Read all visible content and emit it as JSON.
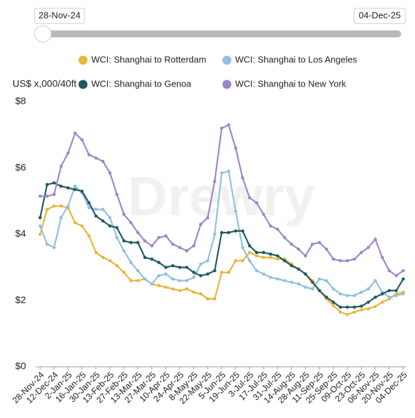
{
  "range_slider": {
    "start_label": "28-Nov-24",
    "end_label": "04-Dec-25"
  },
  "chart_data": {
    "type": "line",
    "y_axis_label": "US$ x,000/40ft",
    "watermark": "Drewry",
    "categories": [
      "28-Nov-24",
      null,
      "12-Dec-24",
      null,
      "2-Jan-25",
      null,
      "16-Jan-25",
      null,
      "30-Jan-25",
      null,
      "13-Feb-25",
      null,
      "27-Feb-25",
      null,
      "13-Mar-25",
      null,
      "27-Mar-25",
      null,
      "10-Apr-25",
      null,
      "24-Apr-25",
      null,
      "8-May-25",
      null,
      "22-May-25",
      null,
      "5-Jun-25",
      null,
      "19-Jun-25",
      null,
      "3-Jul-25",
      null,
      "17-Jul-25",
      null,
      "31-Jul-25",
      null,
      "14-Aug-25",
      null,
      "28-Aug-25",
      null,
      "11-Sep-25",
      null,
      "25-Sep-25",
      null,
      "09-Oct-25",
      null,
      "23-Oct-25",
      null,
      "06-Nov-25",
      null,
      "20-Nov-25",
      null,
      "04-Dec-25"
    ],
    "series": [
      {
        "name": "WCI: Shanghai to Rotterdam",
        "color": "#e9b43c",
        "values": [
          4.0,
          4.75,
          4.85,
          4.85,
          4.8,
          4.35,
          4.25,
          3.95,
          3.45,
          3.3,
          3.2,
          3.05,
          2.85,
          2.6,
          2.6,
          2.65,
          2.5,
          2.45,
          2.4,
          2.35,
          2.3,
          2.35,
          2.25,
          2.2,
          2.05,
          2.05,
          2.85,
          2.85,
          3.2,
          3.2,
          3.45,
          3.35,
          3.3,
          3.3,
          3.25,
          3.25,
          3.1,
          2.95,
          2.8,
          2.6,
          2.3,
          2.05,
          1.85,
          1.65,
          1.58,
          1.65,
          1.72,
          1.75,
          1.82,
          1.95,
          2.05,
          2.2,
          2.25
        ]
      },
      {
        "name": "WCI: Shanghai to Los Angeles",
        "color": "#91bfe0",
        "values": [
          4.25,
          3.7,
          3.6,
          4.5,
          4.85,
          5.45,
          5.25,
          4.8,
          4.75,
          4.75,
          4.5,
          3.9,
          3.5,
          3.15,
          2.9,
          2.65,
          2.5,
          2.75,
          2.8,
          2.65,
          2.6,
          2.6,
          2.7,
          3.1,
          3.2,
          4.0,
          5.85,
          5.9,
          4.7,
          3.6,
          3.2,
          2.9,
          2.8,
          2.7,
          2.65,
          2.6,
          2.55,
          2.5,
          2.4,
          2.35,
          2.65,
          2.6,
          2.35,
          2.2,
          2.15,
          2.15,
          2.25,
          2.35,
          2.6,
          2.25,
          2.1,
          2.15,
          2.2
        ]
      },
      {
        "name": "WCI: Shanghai to Genoa",
        "color": "#1f5a5e",
        "values": [
          4.5,
          5.5,
          5.55,
          5.45,
          5.4,
          5.35,
          5.3,
          4.95,
          4.55,
          4.4,
          4.25,
          4.2,
          3.8,
          3.75,
          3.75,
          3.3,
          3.25,
          3.15,
          3.0,
          3.05,
          3.0,
          3.0,
          2.85,
          2.75,
          2.8,
          2.9,
          4.05,
          4.05,
          4.1,
          4.1,
          3.65,
          3.45,
          3.45,
          3.4,
          3.35,
          3.2,
          3.05,
          2.95,
          2.8,
          2.55,
          2.3,
          2.1,
          1.95,
          1.8,
          1.8,
          1.8,
          1.83,
          1.95,
          2.1,
          2.2,
          2.3,
          2.3,
          2.65
        ]
      },
      {
        "name": "WCI: Shanghai to New York",
        "color": "#9c86cb",
        "values": [
          5.15,
          5.15,
          5.2,
          6.05,
          6.45,
          7.05,
          6.85,
          6.4,
          6.3,
          6.2,
          5.85,
          5.2,
          4.6,
          4.35,
          4.05,
          3.8,
          3.65,
          3.9,
          3.95,
          3.7,
          3.6,
          3.5,
          3.65,
          4.3,
          4.5,
          5.6,
          7.2,
          7.3,
          6.6,
          5.7,
          5.1,
          4.95,
          4.6,
          4.25,
          4.15,
          3.9,
          3.7,
          3.55,
          3.35,
          3.7,
          3.75,
          3.55,
          3.25,
          3.2,
          3.2,
          3.25,
          3.45,
          3.6,
          3.85,
          3.3,
          2.9,
          2.75,
          2.9
        ]
      }
    ],
    "ylim": [
      0,
      8
    ],
    "yticks": [
      {
        "value": 0,
        "label": "$0"
      },
      {
        "value": 2,
        "label": "$2"
      },
      {
        "value": 4,
        "label": "$4"
      },
      {
        "value": 6,
        "label": "$6"
      },
      {
        "value": 8,
        "label": "$8"
      }
    ],
    "grid": false
  }
}
